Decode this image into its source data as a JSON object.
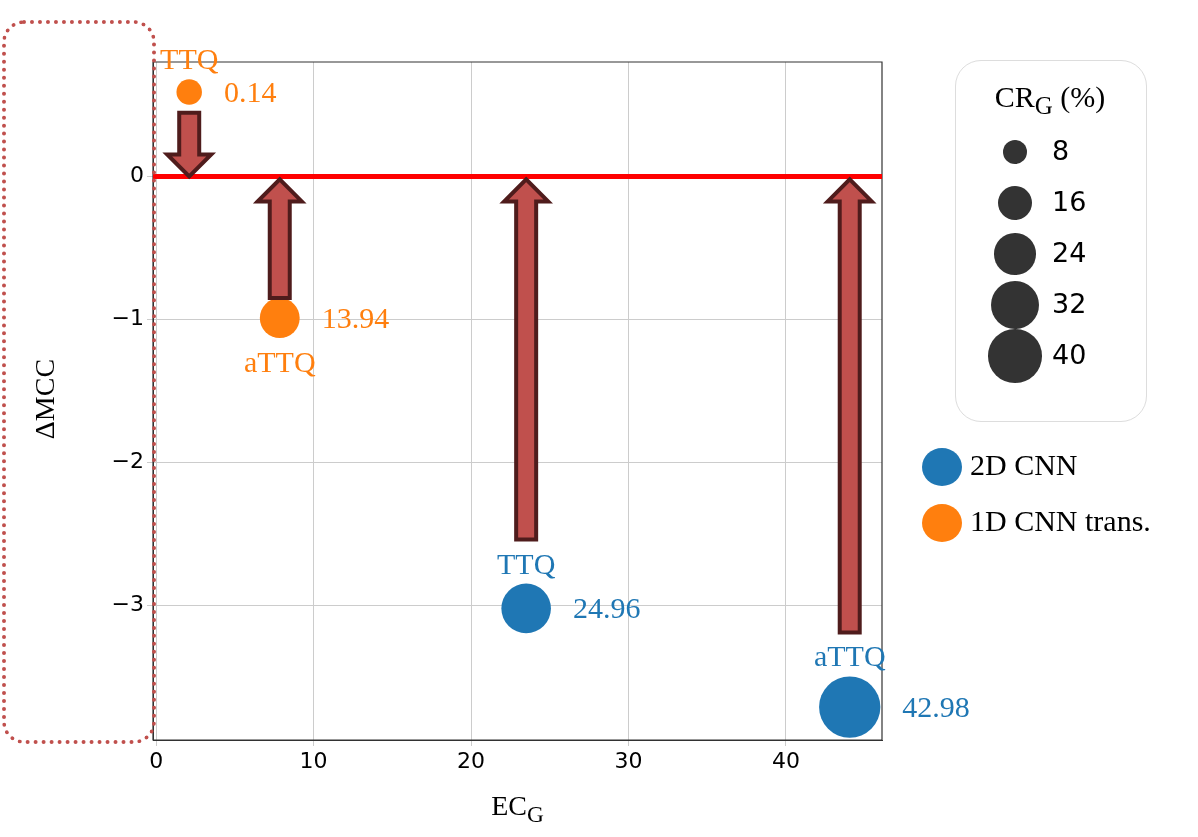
{
  "chart_data": {
    "type": "bubble",
    "xlabel": "EC$_{G}$",
    "ylabel": "ΔMCC",
    "legend_title": "CR$_{G}$ (%)",
    "xlim": [
      -0.2,
      46.1
    ],
    "ylim": [
      -3.94,
      0.8
    ],
    "xticks": [
      0,
      10,
      20,
      30,
      40
    ],
    "yticks": [
      {
        "value": -3,
        "label": "−3"
      },
      {
        "value": -2,
        "label": "−2"
      },
      {
        "value": -1,
        "label": "−1"
      },
      0
    ],
    "grid": true,
    "legend": "right",
    "size_legend": [
      8,
      16,
      24,
      32,
      40
    ],
    "ref_lines": [
      {
        "axis": "y",
        "value": 0,
        "color": "#ff0000"
      }
    ],
    "series": [
      {
        "name": "2D CNN",
        "color": "#1f77b4",
        "x": [
          23.5,
          44.05
        ],
        "values": [
          -3.02,
          -3.71
        ],
        "sizes": [
          34,
          52
        ]
      },
      {
        "name": "1D CNN trans.",
        "color": "#ff7f0e",
        "x": [
          2.1,
          7.85
        ],
        "values": [
          0.59,
          -0.99
        ],
        "sizes": [
          9,
          22
        ]
      }
    ],
    "annotations": [
      {
        "text": "TTQ",
        "x": 23.5,
        "y": -3.02
      },
      {
        "text": "aTTQ",
        "x": 44.05,
        "y": -3.71
      },
      {
        "text": "TTQ",
        "x": 2.1,
        "y": 0.59
      },
      {
        "text": "aTTQ",
        "x": 7.85,
        "y": -0.99
      },
      {
        "text": "24.96",
        "x": 23.5,
        "y": -3.02
      },
      {
        "text": "42.98",
        "x": 44.05,
        "y": -3.71
      },
      {
        "text": "0.14",
        "x": 2.1,
        "y": 0.59
      },
      {
        "text": "13.94",
        "x": 7.85,
        "y": -0.99
      }
    ]
  }
}
